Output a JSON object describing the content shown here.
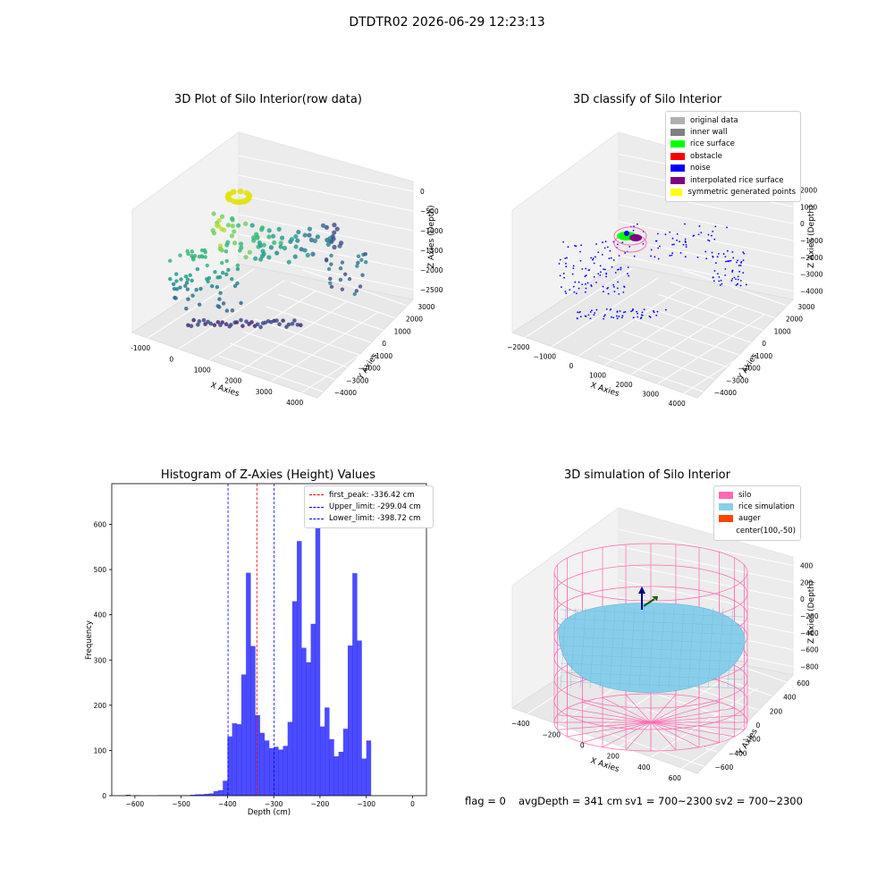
{
  "suptitle": "DTDTR02 2026-06-29 12:23:13",
  "plot1": {
    "title": "3D Plot of Silo Interior(row data)",
    "xlabel": "X Axies",
    "ylabel": "Y Axies",
    "zlabel": "Z Axies (Depth)",
    "xticks": [
      "-1000",
      "0",
      "1000",
      "2000",
      "3000",
      "4000"
    ],
    "yticks": [
      "3000",
      "2000",
      "1000",
      "0",
      "−1000",
      "−2000",
      "−3000",
      "−4000"
    ],
    "zticks": [
      "0",
      "−500",
      "−1000",
      "−1500",
      "−2000",
      "−2500"
    ]
  },
  "plot2": {
    "title": "3D classify of Silo Interior",
    "xlabel": "X Axies",
    "ylabel": "Y Axies",
    "zlabel": "Z Axies (Depth)",
    "xticks": [
      "−2000",
      "−1000",
      "0",
      "1000",
      "2000",
      "3000",
      "4000"
    ],
    "yticks": [
      "3000",
      "2000",
      "1000",
      "0",
      "−1000",
      "−2000",
      "−3000",
      "−4000"
    ],
    "zticks": [
      "2000",
      "1000",
      "0",
      "−1000",
      "−2000",
      "−3000",
      "−4000"
    ],
    "legend": [
      {
        "label": "original data",
        "color": "#b0b0b0"
      },
      {
        "label": "inner wall",
        "color": "#808080"
      },
      {
        "label": "rice surface",
        "color": "#00ff00"
      },
      {
        "label": "obstacle",
        "color": "#ff0000"
      },
      {
        "label": "noise",
        "color": "#0000ff"
      },
      {
        "label": "interpolated rice surface",
        "color": "#800080"
      },
      {
        "label": "symmetric generated points",
        "color": "#ffff00"
      }
    ]
  },
  "plot3": {
    "title": "3D simulation of Silo Interior",
    "xlabel": "X Axies",
    "ylabel": "Y Axies",
    "zlabel": "Z Axies (Depth)",
    "xticks": [
      "−400",
      "−200",
      "0",
      "200",
      "400",
      "600"
    ],
    "yticks": [
      "600",
      "400",
      "200",
      "0",
      "−200",
      "−400",
      "−600"
    ],
    "zticks": [
      "400",
      "200",
      "0",
      "−200",
      "−400",
      "−600",
      "−800"
    ],
    "legend": [
      {
        "label": "silo",
        "color": "#ff69b4"
      },
      {
        "label": "rice simulation",
        "color": "#87ceeb"
      },
      {
        "label": "auger",
        "color": "#ff4500"
      },
      {
        "label": "center(100,-50)",
        "color": ""
      }
    ]
  },
  "footer": {
    "flag": "flag = 0",
    "avg": "avgDepth = 341 cm",
    "sv1": "sv1 = 700~2300",
    "sv2": "sv2 = 700~2300"
  },
  "chart_data": [
    {
      "type": "bar",
      "title": "Histogram of Z-Axies (Height) Values",
      "xlabel": "Depth (cm)",
      "ylabel": "Frequency",
      "xlim": [
        -650,
        30
      ],
      "ylim": [
        0,
        690
      ],
      "xticks": [
        -600,
        -500,
        -400,
        -300,
        -200,
        -100,
        0
      ],
      "yticks": [
        0,
        100,
        200,
        300,
        400,
        500,
        600
      ],
      "bar_color": "#0000ff",
      "bin_width": 10.5,
      "bins": [
        [
          -620,
          2
        ],
        [
          -600,
          1
        ],
        [
          -550,
          1
        ],
        [
          -540,
          1
        ],
        [
          -530,
          1
        ],
        [
          -520,
          1
        ],
        [
          -510,
          1
        ],
        [
          -500,
          1
        ],
        [
          -490,
          1
        ],
        [
          -480,
          2
        ],
        [
          -470,
          3
        ],
        [
          -460,
          3
        ],
        [
          -450,
          4
        ],
        [
          -440,
          5
        ],
        [
          -430,
          10
        ],
        [
          -420,
          12
        ],
        [
          -410,
          33
        ],
        [
          -400,
          131
        ],
        [
          -390,
          160
        ],
        [
          -380,
          158
        ],
        [
          -370,
          268
        ],
        [
          -360,
          493
        ],
        [
          -350,
          331
        ],
        [
          -340,
          178
        ],
        [
          -330,
          139
        ],
        [
          -320,
          122
        ],
        [
          -310,
          105
        ],
        [
          -300,
          108
        ],
        [
          -290,
          102
        ],
        [
          -280,
          110
        ],
        [
          -270,
          163
        ],
        [
          -260,
          430
        ],
        [
          -250,
          563
        ],
        [
          -240,
          327
        ],
        [
          -230,
          295
        ],
        [
          -220,
          380
        ],
        [
          -210,
          659
        ],
        [
          -200,
          153
        ],
        [
          -190,
          195
        ],
        [
          -180,
          125
        ],
        [
          -170,
          87
        ],
        [
          -160,
          97
        ],
        [
          -150,
          148
        ],
        [
          -140,
          332
        ],
        [
          -130,
          492
        ],
        [
          -120,
          343
        ],
        [
          -110,
          82
        ],
        [
          -100,
          122
        ]
      ],
      "vlines": [
        {
          "label": "first_peak: -336.42 cm",
          "x": -336.42,
          "color": "#ff0000"
        },
        {
          "label": "Upper_limit: -299.04 cm",
          "x": -299.04,
          "color": "#0000ff"
        },
        {
          "label": "Lower_limit: -398.72 cm",
          "x": -398.72,
          "color": "#0000ff"
        }
      ],
      "legend_position": "top-right"
    }
  ]
}
